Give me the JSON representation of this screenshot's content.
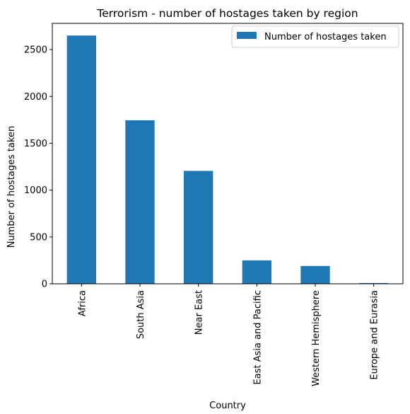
{
  "chart_data": {
    "type": "bar",
    "title": "Terrorism - number of hostages taken by region",
    "xlabel": "Country",
    "ylabel": "Number of hostages taken",
    "categories": [
      "Africa",
      "South Asia",
      "Near East",
      "East Asia and Pacific",
      "Western Hemisphere",
      "Europe and Eurasia"
    ],
    "series": [
      {
        "name": "Number of hostages taken",
        "values": [
          2650,
          1745,
          1205,
          250,
          190,
          8
        ],
        "color": "#1f77b4"
      }
    ],
    "ylim": [
      0,
      2780
    ],
    "yticks": [
      0,
      500,
      1000,
      1500,
      2000,
      2500
    ],
    "ytick_labels": [
      "0",
      "500",
      "1000",
      "1500",
      "2000",
      "2500"
    ],
    "grid": false,
    "legend_position": "top-right"
  }
}
